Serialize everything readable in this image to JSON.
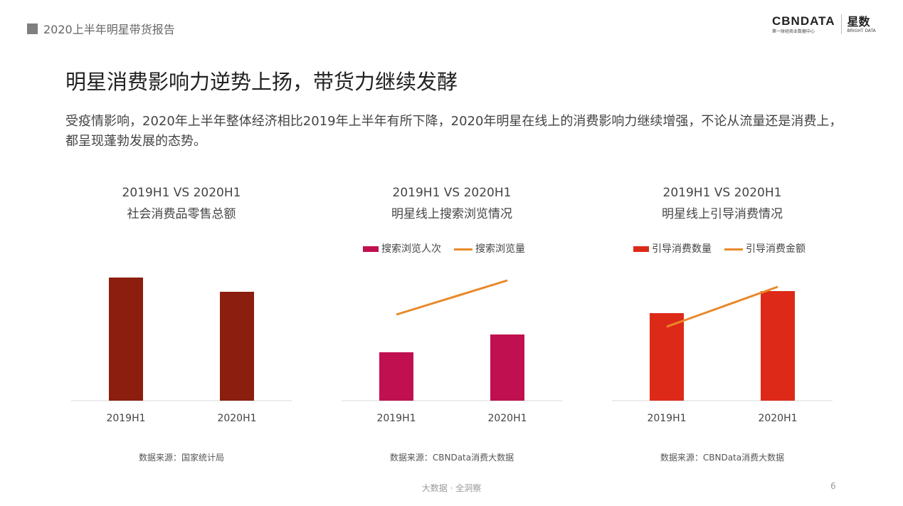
{
  "header": {
    "section": "2020上半年明星带货报告",
    "logo_text": "CBNDATA",
    "logo_sub": "第一财经商业数据中心",
    "logo_brand": "星数",
    "logo_brand_sub": "BRIGHT DATA"
  },
  "title": "明星消费影响力逆势上扬，带货力继续发酵",
  "description": "受疫情影响，2020年上半年整体经济相比2019年上半年有所下降，2020年明星在线上的消费影响力继续增强，不论从流量还是消费上，都呈现蓬勃发展的态势。",
  "chart_data": [
    {
      "type": "bar",
      "title": "2019H1 VS 2020H1",
      "subtitle": "社会消费品零售总额",
      "categories": [
        "2019H1",
        "2020H1"
      ],
      "series": [
        {
          "type": "bar",
          "color": "#8b1e0e",
          "values": [
            173,
            153
          ]
        }
      ],
      "ylim": [
        0,
        200
      ],
      "grid": false,
      "source": "数据来源：国家统计局"
    },
    {
      "type": "bar",
      "title": "2019H1 VS 2020H1",
      "subtitle": "明星线上搜索浏览情况",
      "categories": [
        "2019H1",
        "2020H1"
      ],
      "series": [
        {
          "name": "搜索浏览人次",
          "type": "bar",
          "color": "#c0104f",
          "values": [
            68,
            93
          ]
        },
        {
          "name": "搜索浏览量",
          "type": "line",
          "color": "#e8892a",
          "values": [
            121,
            169
          ]
        }
      ],
      "ylim": [
        0,
        200
      ],
      "grid": false,
      "legend": "top",
      "source": "数据来源：CBNData消费大数据"
    },
    {
      "type": "bar",
      "title": "2019H1 VS 2020H1",
      "subtitle": "明星线上引导消费情况",
      "categories": [
        "2019H1",
        "2020H1"
      ],
      "series": [
        {
          "name": "引导消费数量",
          "type": "bar",
          "color": "#dd2a18",
          "values": [
            123,
            154
          ]
        },
        {
          "name": "引导消费金额",
          "type": "line",
          "color": "#e8892a",
          "values": [
            104,
            160
          ]
        }
      ],
      "ylim": [
        0,
        200
      ],
      "grid": false,
      "legend": "top",
      "source": "数据来源：CBNData消费大数据"
    }
  ],
  "footer": {
    "tagline": "大数据 · 全洞察",
    "page": "6"
  }
}
